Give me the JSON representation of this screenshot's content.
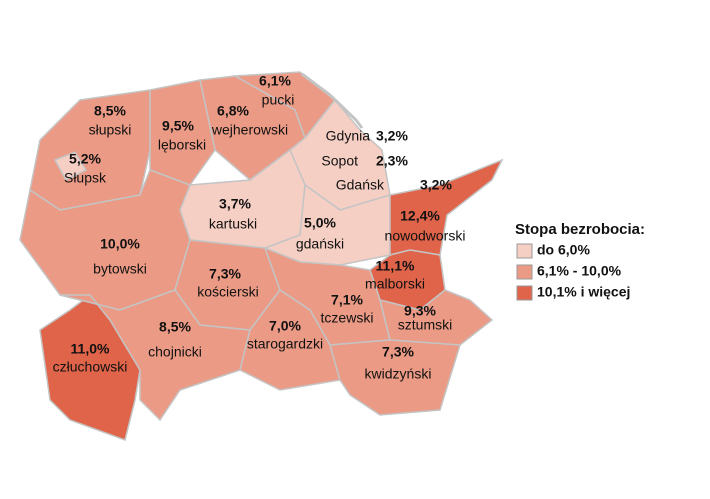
{
  "regions": [
    {
      "name": "pucki",
      "value": "6,1%",
      "color": "#eb9a85"
    },
    {
      "name": "wejherowski",
      "value": "6,8%",
      "color": "#eb9a85"
    },
    {
      "name": "słupski",
      "value": "8,5%",
      "color": "#eb9a85"
    },
    {
      "name": "lęborski",
      "value": "9,5%",
      "color": "#eb9a85"
    },
    {
      "name": "Słupsk",
      "value": "5,2%",
      "color": "#f5cfc4"
    },
    {
      "name": "Gdynia",
      "value": "3,2%",
      "color": "#f5cfc4"
    },
    {
      "name": "Sopot",
      "value": "2,3%",
      "color": "#f5cfc4"
    },
    {
      "name": "Gdańsk",
      "value": "3,2%",
      "color": "#f5cfc4"
    },
    {
      "name": "kartuski",
      "value": "3,7%",
      "color": "#f5cfc4"
    },
    {
      "name": "gdański",
      "value": "5,0%",
      "color": "#f5cfc4"
    },
    {
      "name": "nowodworski",
      "value": "12,4%",
      "color": "#e0644a"
    },
    {
      "name": "bytowski",
      "value": "10,0%",
      "color": "#eb9a85"
    },
    {
      "name": "kościerski",
      "value": "7,3%",
      "color": "#eb9a85"
    },
    {
      "name": "malborski",
      "value": "11,1%",
      "color": "#e0644a"
    },
    {
      "name": "tczewski",
      "value": "7,1%",
      "color": "#eb9a85"
    },
    {
      "name": "sztumski",
      "value": "9,3%",
      "color": "#eb9a85"
    },
    {
      "name": "człuchowski",
      "value": "11,0%",
      "color": "#e0644a"
    },
    {
      "name": "chojnicki",
      "value": "8,5%",
      "color": "#eb9a85"
    },
    {
      "name": "starogardzki",
      "value": "7,0%",
      "color": "#eb9a85"
    },
    {
      "name": "kwidzyński",
      "value": "7,3%",
      "color": "#eb9a85"
    }
  ],
  "legend": {
    "title": "Stopa bezrobocia:",
    "items": [
      {
        "label": "do 6,0%",
        "color": "#f5cfc4"
      },
      {
        "label": "6,1% - 10,0%",
        "color": "#eb9a85"
      },
      {
        "label": "10,1% i więcej",
        "color": "#e0644a"
      }
    ]
  }
}
